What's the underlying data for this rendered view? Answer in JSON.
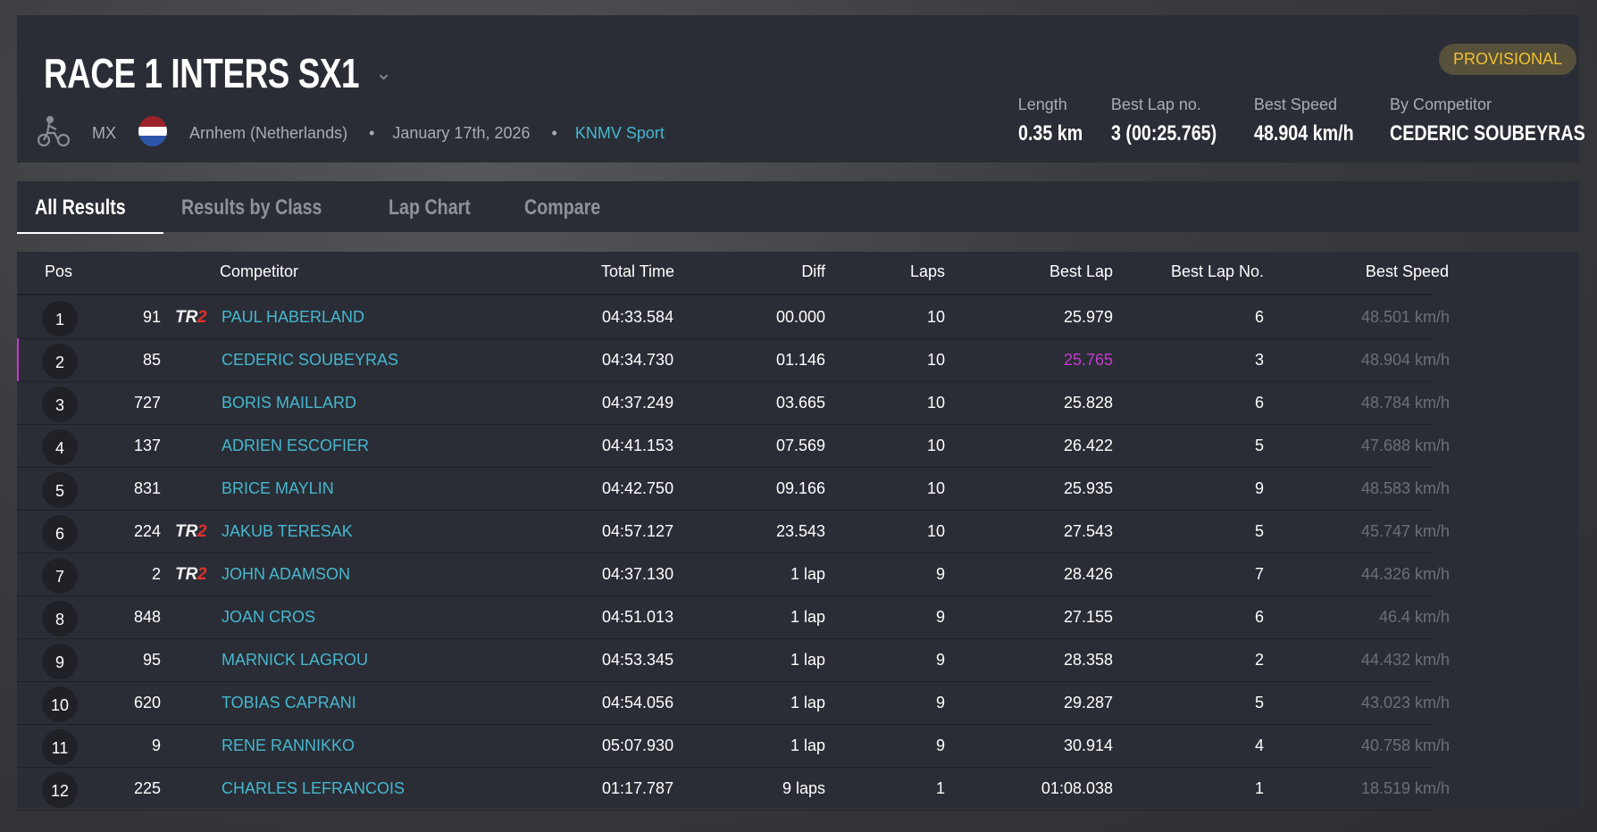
{
  "header": {
    "title": "RACE 1 INTERS SX1",
    "status_badge": "PROVISIONAL",
    "discipline": "MX",
    "location": "Arnhem (Netherlands)",
    "date": "January 17th, 2026",
    "organizer": "KNMV Sport",
    "stats": [
      {
        "label": "Length",
        "value": "0.35 km"
      },
      {
        "label": "Best Lap no.",
        "value": "3 (00:25.765)"
      },
      {
        "label": "Best Speed",
        "value": "48.904 km/h"
      },
      {
        "label": "By Competitor",
        "value": "CEDERIC SOUBEYRAS"
      }
    ],
    "colors": {
      "accent": "#46b7cf",
      "badge_text": "#f1c232",
      "best_lap": "#c43bd0"
    }
  },
  "tabs": [
    {
      "label": "All Results",
      "active": true
    },
    {
      "label": "Results by Class"
    },
    {
      "label": "Lap Chart"
    },
    {
      "label": "Compare"
    }
  ],
  "table": {
    "columns": [
      "Pos",
      "Competitor",
      "Total Time",
      "Diff",
      "Laps",
      "Best Lap",
      "Best Lap No.",
      "Best Speed"
    ],
    "rows": [
      {
        "pos": "1",
        "num": "91",
        "tr2": true,
        "name": "PAUL HABERLAND",
        "total": "04:33.584",
        "diff": "00.000",
        "laps": "10",
        "best": "25.979",
        "bestno": "6",
        "speed": "48.501 km/h"
      },
      {
        "pos": "2",
        "num": "85",
        "tr2": false,
        "name": "CEDERIC SOUBEYRAS",
        "total": "04:34.730",
        "diff": "01.146",
        "laps": "10",
        "best": "25.765",
        "bestno": "3",
        "speed": "48.904 km/h",
        "overall_best": true
      },
      {
        "pos": "3",
        "num": "727",
        "tr2": false,
        "name": "BORIS MAILLARD",
        "total": "04:37.249",
        "diff": "03.665",
        "laps": "10",
        "best": "25.828",
        "bestno": "6",
        "speed": "48.784 km/h"
      },
      {
        "pos": "4",
        "num": "137",
        "tr2": false,
        "name": "ADRIEN ESCOFIER",
        "total": "04:41.153",
        "diff": "07.569",
        "laps": "10",
        "best": "26.422",
        "bestno": "5",
        "speed": "47.688 km/h"
      },
      {
        "pos": "5",
        "num": "831",
        "tr2": false,
        "name": "BRICE MAYLIN",
        "total": "04:42.750",
        "diff": "09.166",
        "laps": "10",
        "best": "25.935",
        "bestno": "9",
        "speed": "48.583 km/h"
      },
      {
        "pos": "6",
        "num": "224",
        "tr2": true,
        "name": "JAKUB TERESAK",
        "total": "04:57.127",
        "diff": "23.543",
        "laps": "10",
        "best": "27.543",
        "bestno": "5",
        "speed": "45.747 km/h"
      },
      {
        "pos": "7",
        "num": "2",
        "tr2": true,
        "name": "JOHN ADAMSON",
        "total": "04:37.130",
        "diff": "1 lap",
        "laps": "9",
        "best": "28.426",
        "bestno": "7",
        "speed": "44.326 km/h"
      },
      {
        "pos": "8",
        "num": "848",
        "tr2": false,
        "name": "JOAN CROS",
        "total": "04:51.013",
        "diff": "1 lap",
        "laps": "9",
        "best": "27.155",
        "bestno": "6",
        "speed": "46.4 km/h"
      },
      {
        "pos": "9",
        "num": "95",
        "tr2": false,
        "name": "MARNICK LAGROU",
        "total": "04:53.345",
        "diff": "1 lap",
        "laps": "9",
        "best": "28.358",
        "bestno": "2",
        "speed": "44.432 km/h"
      },
      {
        "pos": "10",
        "num": "620",
        "tr2": false,
        "name": "TOBIAS CAPRANI",
        "total": "04:54.056",
        "diff": "1 lap",
        "laps": "9",
        "best": "29.287",
        "bestno": "5",
        "speed": "43.023 km/h"
      },
      {
        "pos": "11",
        "num": "9",
        "tr2": false,
        "name": "RENE RANNIKKO",
        "total": "05:07.930",
        "diff": "1 lap",
        "laps": "9",
        "best": "30.914",
        "bestno": "4",
        "speed": "40.758 km/h"
      },
      {
        "pos": "12",
        "num": "225",
        "tr2": false,
        "name": "CHARLES LEFRANCOIS",
        "total": "01:17.787",
        "diff": "9 laps",
        "laps": "1",
        "best": "01:08.038",
        "bestno": "1",
        "speed": "18.519 km/h"
      }
    ]
  }
}
